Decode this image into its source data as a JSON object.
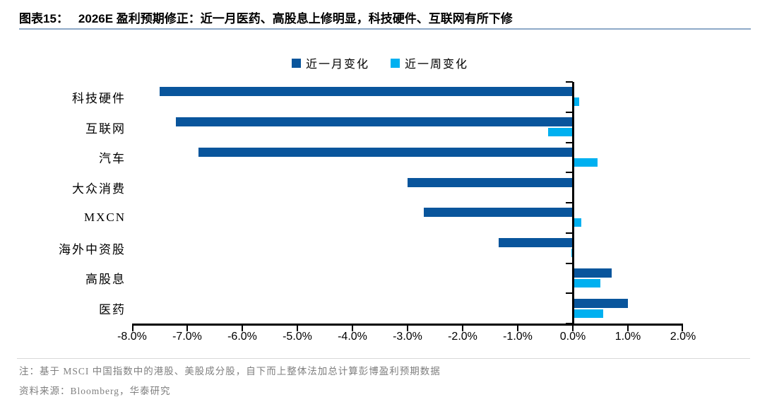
{
  "header": {
    "figure_label": "图表15：",
    "title": "2026E 盈利预期修正：近一月医药、高股息上修明显，科技硬件、互联网有所下修"
  },
  "chart_data": {
    "type": "bar",
    "orientation": "horizontal",
    "title": "",
    "categories": [
      "科技硬件",
      "互联网",
      "汽车",
      "大众消费",
      "MXCN",
      "海外中资股",
      "高股息",
      "医药"
    ],
    "series": [
      {
        "name": "近一月变化",
        "color": "#09559c",
        "values": [
          -7.5,
          -7.2,
          -6.8,
          -3.0,
          -2.7,
          -1.35,
          0.7,
          1.0
        ]
      },
      {
        "name": "近一周变化",
        "color": "#00b0f0",
        "values": [
          0.12,
          -0.45,
          0.45,
          0.0,
          0.15,
          -0.03,
          0.5,
          0.55
        ]
      }
    ],
    "value_unit": "%",
    "xlim": [
      -8,
      2
    ],
    "x_ticks": [
      "-8.0%",
      "-7.0%",
      "-6.0%",
      "-5.0%",
      "-4.0%",
      "-3.0%",
      "-2.0%",
      "-1.0%",
      "0.0%",
      "1.0%",
      "2.0%"
    ],
    "legend_position": "top",
    "grid": false,
    "axis_color": "#000000"
  },
  "footer": {
    "note": "注：基于 MSCI 中国指数中的港股、美股成分股，自下而上整体法加总计算彭博盈利预期数据",
    "source": "资料来源：Bloomberg，华泰研究"
  }
}
